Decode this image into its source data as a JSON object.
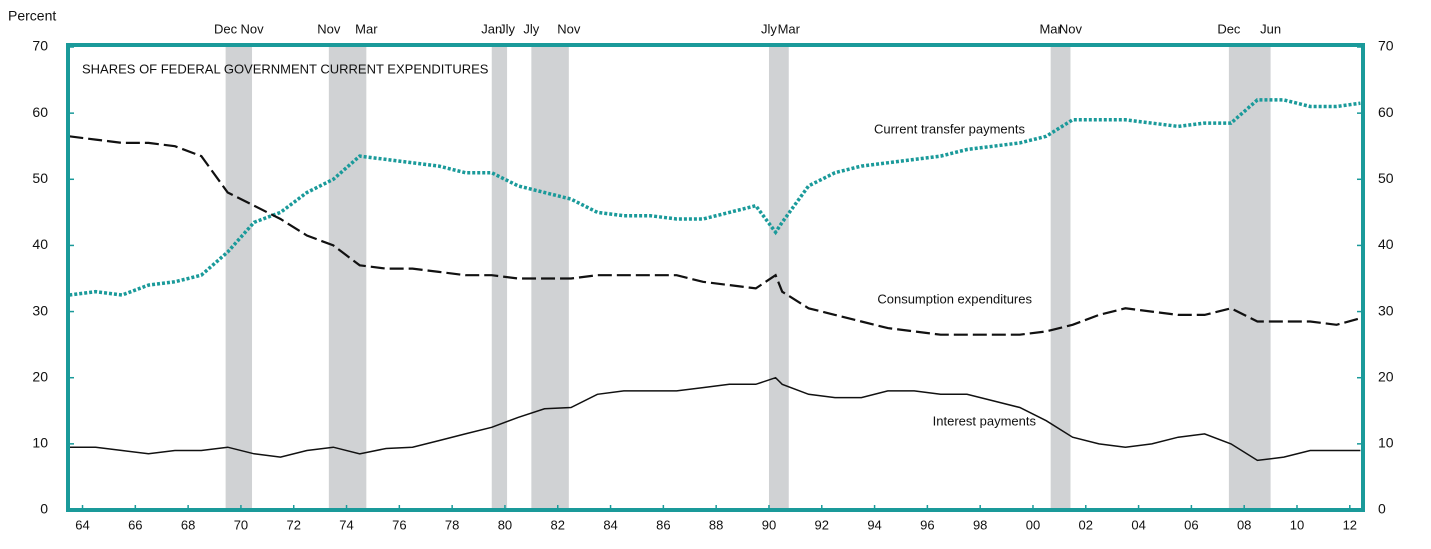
{
  "chart_data": {
    "type": "line",
    "title": "SHARES OF FEDERAL GOVERNMENT CURRENT EXPENDITURES",
    "y_label": "Percent",
    "xlim": [
      1963.95,
      2013
    ],
    "ylim": [
      0,
      70
    ],
    "yticks": [
      0,
      10,
      20,
      30,
      40,
      50,
      60,
      70
    ],
    "xticks": [
      {
        "value": 1964.5,
        "label": "64"
      },
      {
        "value": 1966.5,
        "label": "66"
      },
      {
        "value": 1968.5,
        "label": "68"
      },
      {
        "value": 1970.5,
        "label": "70"
      },
      {
        "value": 1972.5,
        "label": "72"
      },
      {
        "value": 1974.5,
        "label": "74"
      },
      {
        "value": 1976.5,
        "label": "76"
      },
      {
        "value": 1978.5,
        "label": "78"
      },
      {
        "value": 1980.5,
        "label": "80"
      },
      {
        "value": 1982.5,
        "label": "82"
      },
      {
        "value": 1984.5,
        "label": "84"
      },
      {
        "value": 1986.5,
        "label": "86"
      },
      {
        "value": 1988.5,
        "label": "88"
      },
      {
        "value": 1990.5,
        "label": "90"
      },
      {
        "value": 1992.5,
        "label": "92"
      },
      {
        "value": 1994.5,
        "label": "94"
      },
      {
        "value": 1996.5,
        "label": "96"
      },
      {
        "value": 1998.5,
        "label": "98"
      },
      {
        "value": 2000.5,
        "label": "00"
      },
      {
        "value": 2002.5,
        "label": "02"
      },
      {
        "value": 2004.5,
        "label": "04"
      },
      {
        "value": 2006.5,
        "label": "06"
      },
      {
        "value": 2008.5,
        "label": "08"
      },
      {
        "value": 2010.5,
        "label": "10"
      },
      {
        "value": 2012.5,
        "label": "12"
      }
    ],
    "recessions": [
      {
        "start": 1969.92,
        "end": 1970.92,
        "start_label": "Dec",
        "end_label": "Nov"
      },
      {
        "start": 1973.83,
        "end": 1975.25,
        "start_label": "Nov",
        "end_label": "Mar"
      },
      {
        "start": 1980.0,
        "end": 1980.58,
        "start_label": "Jan",
        "end_label": "Jly"
      },
      {
        "start": 1981.5,
        "end": 1982.92,
        "start_label": "Jly",
        "end_label": "Nov"
      },
      {
        "start": 1990.5,
        "end": 1991.25,
        "start_label": "Jly",
        "end_label": "Mar"
      },
      {
        "start": 2001.17,
        "end": 2001.92,
        "start_label": "Mar",
        "end_label": "Nov"
      },
      {
        "start": 2007.92,
        "end": 2009.5,
        "start_label": "Dec",
        "end_label": "Jun"
      }
    ],
    "recession_color": "#d0d2d4",
    "border_color": "#1a9a9a",
    "x": [
      1964,
      1965,
      1966,
      1967,
      1968,
      1969,
      1970,
      1971,
      1972,
      1973,
      1974,
      1975,
      1976,
      1977,
      1978,
      1979,
      1980,
      1981,
      1982,
      1983,
      1984,
      1985,
      1986,
      1987,
      1988,
      1989,
      1990,
      1990.75,
      1991,
      1992,
      1993,
      1994,
      1995,
      1996,
      1997,
      1998,
      1999,
      2000,
      2001,
      2002,
      2003,
      2004,
      2005,
      2006,
      2007,
      2008,
      2009,
      2010,
      2011,
      2012,
      2012.9
    ],
    "series": [
      {
        "name": "Current transfer payments",
        "color": "#1a9a9a",
        "style": "dotted",
        "values": [
          32.5,
          33,
          32.5,
          34,
          34.5,
          35.5,
          39,
          43.5,
          45,
          48,
          50,
          53.5,
          53,
          52.5,
          52,
          51,
          51,
          49,
          48,
          47,
          45,
          44.5,
          44.5,
          44,
          44,
          45,
          46,
          42,
          43.5,
          49,
          51,
          52,
          52.5,
          53,
          53.5,
          54.5,
          55,
          55.5,
          56.5,
          59,
          59,
          59,
          58.5,
          58,
          58.5,
          58.5,
          62,
          62,
          61,
          61,
          61.5
        ]
      },
      {
        "name": "Consumption expenditures",
        "color": "#111111",
        "style": "dashed",
        "values": [
          56.5,
          56,
          55.5,
          55.5,
          55,
          53.5,
          48,
          46,
          44,
          41.5,
          40,
          37,
          36.5,
          36.5,
          36,
          35.5,
          35.5,
          35,
          35,
          35,
          35.5,
          35.5,
          35.5,
          35.5,
          34.5,
          34,
          33.5,
          35.5,
          33,
          30.5,
          29.5,
          28.5,
          27.5,
          27,
          26.5,
          26.5,
          26.5,
          26.5,
          27,
          28,
          29.5,
          30.5,
          30,
          29.5,
          29.5,
          30.5,
          28.5,
          28.5,
          28.5,
          28,
          29
        ]
      },
      {
        "name": "Interest payments",
        "color": "#111111",
        "style": "solid",
        "values": [
          9.5,
          9.5,
          9,
          8.5,
          9,
          9,
          9.5,
          8.5,
          8,
          9,
          9.5,
          8.5,
          9.3,
          9.5,
          10.5,
          11.5,
          12.5,
          14,
          15.3,
          15.5,
          17.5,
          18,
          18,
          18,
          18.5,
          19,
          19,
          20,
          19,
          17.5,
          17,
          17,
          18,
          18,
          17.5,
          17.5,
          16.5,
          15.5,
          13.5,
          11,
          10,
          9.5,
          10,
          11,
          11.5,
          10,
          7.5,
          8,
          9,
          9,
          9
        ]
      }
    ]
  }
}
